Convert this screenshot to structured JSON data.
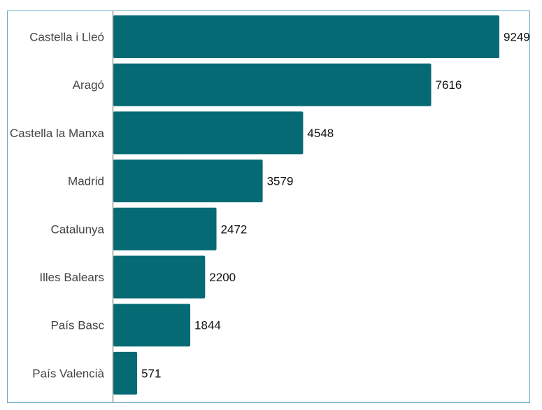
{
  "chart_data": {
    "type": "bar",
    "orientation": "horizontal",
    "categories": [
      "Castella i Lleó",
      "Aragó",
      "Castella la Manxa",
      "Madrid",
      "Catalunya",
      "Illes Balears",
      "País Basc",
      "País Valencià"
    ],
    "values": [
      9249,
      7616,
      4548,
      3579,
      2472,
      2200,
      1844,
      571
    ],
    "xlim": [
      0,
      9249
    ],
    "grid": false,
    "legend": "none",
    "bar_color": "#056a73",
    "frame_color": "#6aa9c9"
  }
}
